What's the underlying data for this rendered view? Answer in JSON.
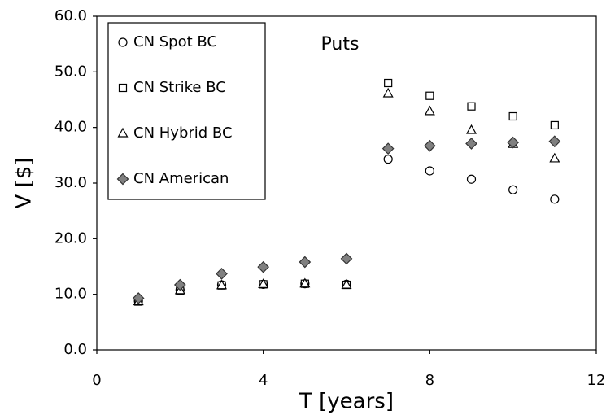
{
  "chart_data": {
    "type": "scatter",
    "annotation": "Puts",
    "x_label": "T [years]",
    "y_label": "V [$]",
    "x": [
      1,
      2,
      3,
      4,
      5,
      6,
      7,
      8,
      9,
      10,
      11
    ],
    "series": [
      {
        "name": "CN Spot BC",
        "marker": "circle",
        "color": "#000000",
        "values": [
          8.8,
          10.8,
          11.7,
          11.8,
          11.9,
          11.8,
          34.3,
          32.2,
          30.7,
          28.8,
          27.1
        ]
      },
      {
        "name": "CN Strike BC",
        "marker": "square",
        "color": "#000000",
        "values": [
          8.7,
          10.6,
          11.6,
          11.8,
          11.9,
          11.7,
          48.0,
          45.7,
          43.8,
          42.0,
          40.4
        ]
      },
      {
        "name": "CN Hybrid BC",
        "marker": "triangle",
        "color": "#000000",
        "values": [
          8.7,
          10.7,
          11.6,
          11.8,
          11.9,
          11.7,
          46.1,
          42.9,
          39.5,
          37.0,
          34.4
        ]
      },
      {
        "name": "CN American",
        "marker": "diamond",
        "color": "#808080",
        "values": [
          9.3,
          11.7,
          13.7,
          14.9,
          15.8,
          16.4,
          36.2,
          36.7,
          37.1,
          37.3,
          37.5
        ]
      }
    ],
    "xlim": [
      0,
      12
    ],
    "xticks": [
      0,
      4,
      8,
      12
    ],
    "ylim": [
      0,
      60
    ],
    "yticks": [
      {
        "value": 0,
        "label": "0.0"
      },
      {
        "value": 10,
        "label": "10.0"
      },
      {
        "value": 20,
        "label": "20.0"
      },
      {
        "value": 30,
        "label": "30.0"
      },
      {
        "value": 40,
        "label": "40.0"
      },
      {
        "value": 50,
        "label": "50.0"
      },
      {
        "value": 60,
        "label": "60.0"
      }
    ],
    "legend": "top-left",
    "grid": false
  }
}
